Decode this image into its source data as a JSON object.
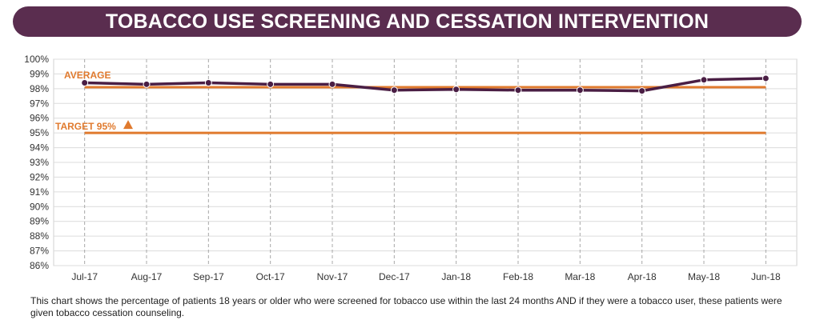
{
  "header": {
    "title": "TOBACCO USE SCREENING AND CESSATION INTERVENTION"
  },
  "caption": "This chart shows the percentage of patients 18 years or older who were screened for tobacco use within the last 24 months AND if they were a tobacco user, these patients were given tobacco cessation counseling.",
  "colors": {
    "banner": "#5a2d4f",
    "series": "#4a1e44",
    "reference": "#e07a2e"
  },
  "chart_data": {
    "type": "line",
    "title": "TOBACCO USE SCREENING AND CESSATION INTERVENTION",
    "categories": [
      "Jul-17",
      "Aug-17",
      "Sep-17",
      "Oct-17",
      "Nov-17",
      "Dec-17",
      "Jan-18",
      "Feb-18",
      "Mar-18",
      "Apr-18",
      "May-18",
      "Jun-18"
    ],
    "series": [
      {
        "values": [
          98.4,
          98.3,
          98.4,
          98.3,
          98.3,
          97.9,
          97.95,
          97.9,
          97.9,
          97.85,
          98.6,
          98.7
        ]
      }
    ],
    "reference_lines": [
      {
        "label": "AVERAGE",
        "value": 98.1
      },
      {
        "label": "TARGET 95%",
        "value": 95
      }
    ],
    "ylim": [
      86,
      100
    ],
    "yticks": [
      "86%",
      "87%",
      "88%",
      "89%",
      "90%",
      "91%",
      "92%",
      "93%",
      "94%",
      "95%",
      "96%",
      "97%",
      "98%",
      "99%",
      "100%"
    ],
    "grid": true,
    "xlabel": "",
    "ylabel": ""
  }
}
